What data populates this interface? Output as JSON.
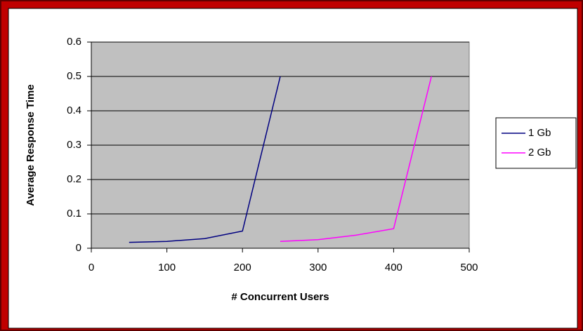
{
  "chart_data": {
    "type": "line",
    "xlabel": "# Concurrent Users",
    "ylabel": "Average Response Time",
    "series": [
      {
        "name": "1 Gb",
        "color": "#000080",
        "x": [
          50,
          100,
          150,
          200,
          250
        ],
        "values": [
          0.017,
          0.02,
          0.028,
          0.05,
          0.5
        ]
      },
      {
        "name": "2 Gb",
        "color": "#ff00ff",
        "x": [
          250,
          300,
          350,
          400,
          450
        ],
        "values": [
          0.02,
          0.025,
          0.038,
          0.057,
          0.5
        ]
      }
    ],
    "xlim": [
      0,
      500
    ],
    "xticks": [
      0,
      100,
      200,
      300,
      400,
      500
    ],
    "ylim": [
      0,
      0.6
    ],
    "yticks": [
      0,
      0.1,
      0.2,
      0.3,
      0.4,
      0.5,
      0.6
    ],
    "grid": true,
    "plot_background": "#c0c0c0",
    "legend": "right"
  }
}
